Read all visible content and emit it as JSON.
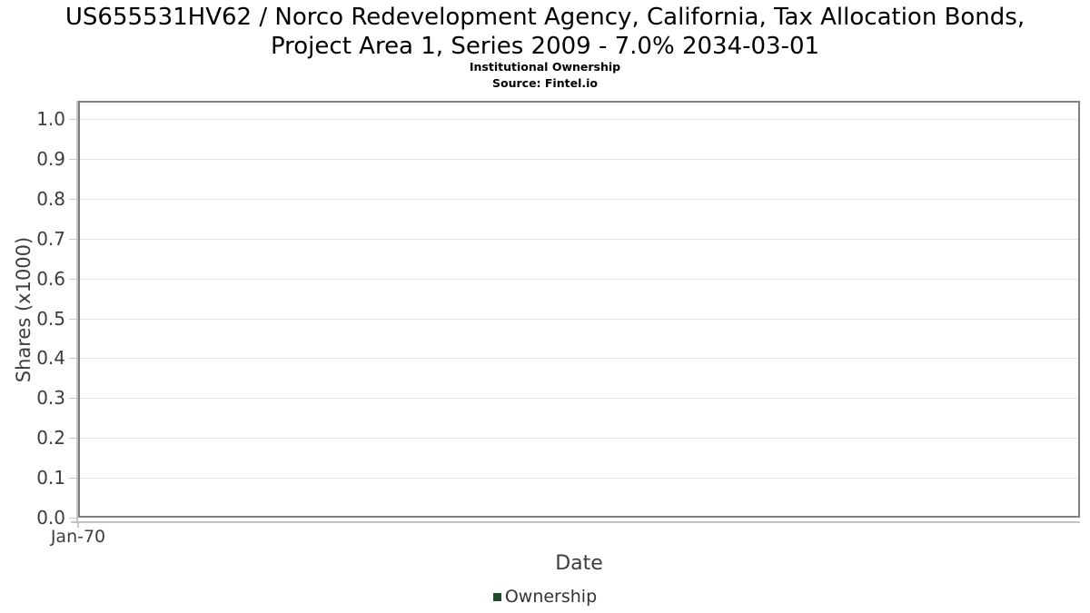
{
  "header": {
    "title_line1": "US655531HV62 / Norco Redevelopment Agency, California, Tax Allocation Bonds,",
    "title_line2": "Project Area 1, Series 2009 - 7.0% 2034-03-01",
    "subtitle": "Institutional Ownership",
    "source": "Source: Fintel.io"
  },
  "chart_data": {
    "type": "line",
    "title": "US655531HV62 / Norco Redevelopment Agency, California, Tax Allocation Bonds, Project Area 1, Series 2009 - 7.0% 2034-03-01",
    "subtitle": "Institutional Ownership",
    "source": "Source: Fintel.io",
    "xlabel": "Date",
    "ylabel": "Shares (x1000)",
    "ylim": [
      0,
      1.046
    ],
    "y_ticks": [
      0.0,
      0.1,
      0.2,
      0.3,
      0.4,
      0.5,
      0.6,
      0.7,
      0.8,
      0.9,
      1.0
    ],
    "y_tick_labels": [
      "0.0",
      "0.1",
      "0.2",
      "0.3",
      "0.4",
      "0.5",
      "0.6",
      "0.7",
      "0.8",
      "0.9",
      "1.0"
    ],
    "x_tick_labels": [
      "Jan-70"
    ],
    "grid": true,
    "legend_position": "bottom",
    "series": [
      {
        "name": "Ownership",
        "color": "#1f4a29",
        "values": []
      }
    ]
  },
  "legend": {
    "items": [
      {
        "label": "Ownership",
        "color": "#1f4a29"
      }
    ]
  },
  "colors": {
    "frame": "#7e7e7e",
    "grid": "#e4e4e4",
    "axis": "#c4c4c4",
    "tick_text": "#3d3d3d",
    "title_text": "#000000",
    "legend_marker": "#1f4a29"
  }
}
